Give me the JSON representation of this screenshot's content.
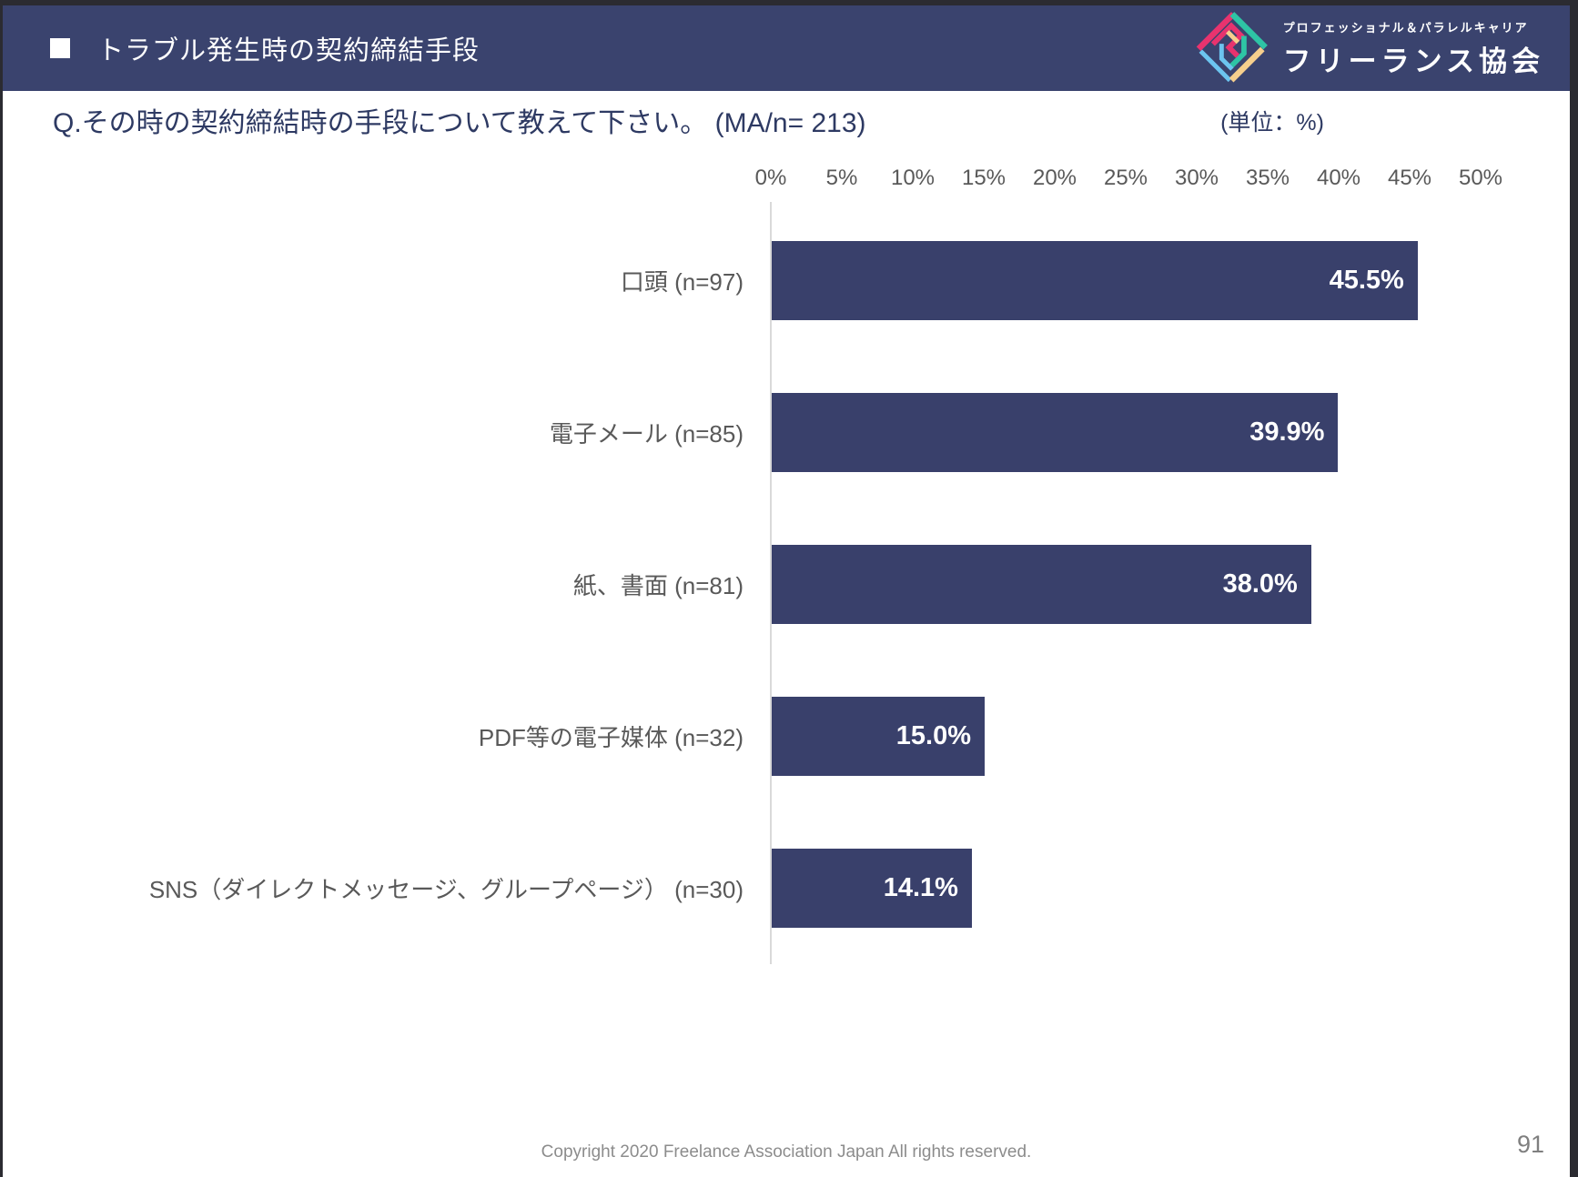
{
  "colors": {
    "header_bg": "#3A436E",
    "bar": "#39406B",
    "question_text": "#2E3A63",
    "tick_text": "#595959",
    "category_text": "#595959",
    "value_text": "#FFFFFF",
    "axis_line": "#D9D9D9",
    "footer_text": "#8C8C8C",
    "frame": "#2B2B31",
    "logo_pink": "#E8336E",
    "logo_teal": "#2EC4A5",
    "logo_blue": "#6CC5F0",
    "logo_yellow": "#F6CF8D"
  },
  "header": {
    "title": "トラブル発生時の契約締結手段",
    "logo_tagline": "プロフェッショナル＆パラレルキャリア",
    "logo_name": "フリーランス協会"
  },
  "question": {
    "text": "Q.その時の契約締結時の手段について教えて下さい。 (MA/n= 213)",
    "unit_label": "(単位：%)"
  },
  "chart_data": {
    "type": "bar",
    "orientation": "horizontal",
    "title": "トラブル発生時の契約締結手段",
    "unit": "%",
    "categories": [
      "口頭 (n=97)",
      "電子メール (n=85)",
      "紙、書面 (n=81)",
      "PDF等の電子媒体 (n=32)",
      "SNS（ダイレクトメッセージ、グループページ） (n=30)"
    ],
    "values": [
      45.5,
      39.9,
      38.0,
      15.0,
      14.1
    ],
    "value_labels": [
      "45.5%",
      "39.9%",
      "38.0%",
      "15.0%",
      "14.1%"
    ],
    "ticks": [
      "0%",
      "5%",
      "10%",
      "15%",
      "20%",
      "25%",
      "30%",
      "35%",
      "40%",
      "45%",
      "50%"
    ],
    "xlim": [
      0,
      50
    ],
    "grid": false,
    "bar_color": "#39406B",
    "value_label_position": "inside-right",
    "legend": "none"
  },
  "footer": {
    "copyright": "Copyright 2020 Freelance Association Japan  All rights reserved.",
    "page_number": "91"
  }
}
